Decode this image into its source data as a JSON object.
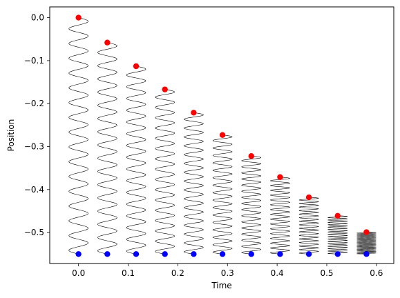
{
  "chart_data": {
    "type": "scatter",
    "title": "",
    "xlabel": "Time",
    "ylabel": "Position",
    "xlim": [
      -0.058,
      0.635
    ],
    "ylim": [
      -0.572,
      0.025
    ],
    "grid": false,
    "xticks": [
      0.0,
      0.1,
      0.2,
      0.3,
      0.4,
      0.5,
      0.6
    ],
    "xtick_labels": [
      "0.0",
      "0.1",
      "0.2",
      "0.3",
      "0.4",
      "0.5",
      "0.6"
    ],
    "yticks": [
      0.0,
      -0.1,
      -0.2,
      -0.3,
      -0.4,
      -0.5
    ],
    "ytick_labels": [
      "0.0",
      "−0.1",
      "−0.2",
      "−0.3",
      "−0.4",
      "−0.5"
    ],
    "anchor_y": -0.55,
    "series": [
      {
        "color": "#ff0000",
        "x": [
          0.0,
          0.058,
          0.116,
          0.174,
          0.232,
          0.29,
          0.348,
          0.406,
          0.464,
          0.522,
          0.58
        ],
        "y": [
          0.0,
          -0.058,
          -0.113,
          -0.167,
          -0.221,
          -0.273,
          -0.322,
          -0.371,
          -0.418,
          -0.461,
          -0.499
        ]
      },
      {
        "color": "#0000ff",
        "x": [
          0.0,
          0.058,
          0.116,
          0.174,
          0.232,
          0.29,
          0.348,
          0.406,
          0.464,
          0.522,
          0.58
        ],
        "y": [
          -0.55,
          -0.55,
          -0.55,
          -0.55,
          -0.55,
          -0.55,
          -0.55,
          -0.55,
          -0.55,
          -0.55,
          -0.55
        ]
      }
    ],
    "springs": {
      "color": "#000000",
      "top_y": [
        0.0,
        -0.058,
        -0.113,
        -0.167,
        -0.221,
        -0.273,
        -0.322,
        -0.371,
        -0.418,
        -0.461,
        -0.499
      ],
      "coil_count": [
        16,
        16,
        16,
        16,
        16,
        16,
        16,
        16,
        16,
        16,
        16
      ]
    }
  }
}
